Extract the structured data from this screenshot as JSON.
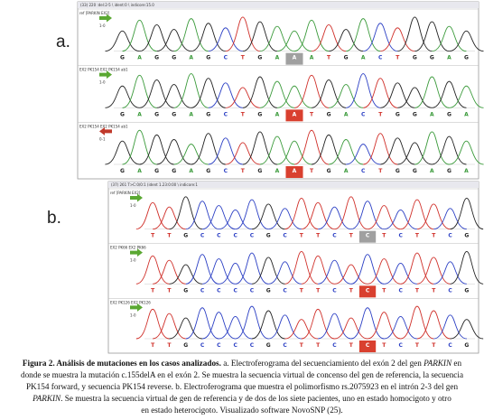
{
  "panels": [
    {
      "label": "a.",
      "header": "(33) 220 :del:2-5 \\ ident:0 \\ indicore:15.0",
      "tracks": [
        {
          "name": "ref [PARKIN EX2]",
          "strand": "1-0",
          "bases": [
            "G",
            "A",
            "G",
            "G",
            "A",
            "G",
            "C",
            "T",
            "G",
            "A",
            "A",
            "A",
            "T",
            "G",
            "A",
            "C",
            "T",
            "G",
            "G",
            "A",
            "G"
          ],
          "highlight": 10,
          "highlight_color": "#a0a0a0",
          "arrow_color": "#5aa832",
          "arrow_dir": "right"
        },
        {
          "name": "EX2 PK154 EX2 PK154 ab1",
          "strand": "1-0",
          "bases": [
            "G",
            "A",
            "G",
            "G",
            "A",
            "G",
            "C",
            "T",
            "G",
            "A",
            "A",
            "T",
            "G",
            "A",
            "C",
            "T",
            "G",
            "G",
            "A",
            "G",
            "A"
          ],
          "highlight": 10,
          "highlight_color": "#d9402f",
          "arrow_color": "#5aa832",
          "arrow_dir": "right"
        },
        {
          "name": "EX2 PK154 EX2 PK154 ab1",
          "strand": "0-1",
          "bases": [
            "G",
            "A",
            "G",
            "G",
            "A",
            "G",
            "C",
            "T",
            "G",
            "A",
            "A",
            "T",
            "G",
            "A",
            "C",
            "T",
            "G",
            "G",
            "A",
            "G",
            "A"
          ],
          "highlight": 10,
          "highlight_color": "#d9402f",
          "arrow_color": "#c0392b",
          "arrow_dir": "left"
        }
      ]
    },
    {
      "label": "b.",
      "header": "(37) 261 T>C:0/0:1 (ident 1.23:0:00 \\ indicore:1",
      "tracks": [
        {
          "name": "ref [PARKIN EX2]",
          "strand": "1-0",
          "bases": [
            "T",
            "T",
            "G",
            "C",
            "C",
            "C",
            "C",
            "G",
            "C",
            "T",
            "T",
            "C",
            "T",
            "C",
            "T",
            "C",
            "T",
            "T",
            "C",
            "G"
          ],
          "highlight": 13,
          "highlight_color": "#a0a0a0",
          "arrow_color": "#5aa832",
          "arrow_dir": "right"
        },
        {
          "name": "EX2 PK66 EX2 PK66",
          "strand": "1-0",
          "bases": [
            "T",
            "T",
            "G",
            "C",
            "C",
            "C",
            "C",
            "G",
            "C",
            "T",
            "T",
            "C",
            "T",
            "C",
            "T",
            "C",
            "T",
            "T",
            "C",
            "G"
          ],
          "highlight": 13,
          "highlight_color": "#d9402f",
          "arrow_color": "#5aa832",
          "arrow_dir": "right"
        },
        {
          "name": "EX2 PK126 EX2 PK126",
          "strand": "1-0",
          "bases": [
            "T",
            "T",
            "G",
            "C",
            "C",
            "C",
            "C",
            "G",
            "C",
            "T",
            "T",
            "C",
            "T",
            "C",
            "T",
            "C",
            "T",
            "T",
            "C",
            "G"
          ],
          "highlight": 13,
          "highlight_color": "#d9402f",
          "arrow_color": "#5aa832",
          "arrow_dir": "right"
        }
      ]
    }
  ],
  "base_colors": {
    "A": "#3a9a3a",
    "C": "#2b3fc4",
    "G": "#222222",
    "T": "#d0302a"
  },
  "caption": {
    "lines": [
      [
        {
          "text": "Figura 2. Análisis de mutaciones en los casos analizados.",
          "style": "bold"
        },
        {
          "text": " a. Electroferograma del secuenciamiento del exón 2 del gen ",
          "style": "normal"
        },
        {
          "text": "PARKIN",
          "style": "italic"
        },
        {
          "text": " en",
          "style": "normal"
        }
      ],
      [
        {
          "text": "donde se muestra la mutación c.155delA en el exón 2. Se muestra la secuencia virtual de concenso del gen de referencia, la secuencia",
          "style": "normal"
        }
      ],
      [
        {
          "text": "PK154 forward, y secuencia PK154 reverse. b. Electroferograma que muestra el polimorfismo rs.2075923 en el intrón 2-3 del gen",
          "style": "normal"
        }
      ],
      [
        {
          "text": "PARKIN",
          "style": "italic"
        },
        {
          "text": ". Se muestra la secuencia virtual de gen de referencia y de dos de los siete pacientes, uno en estado homocigoto y otro",
          "style": "normal"
        }
      ],
      [
        {
          "text": "en estado heterocigoto. Visualizado software NovoSNP (25).",
          "style": "normal"
        }
      ]
    ]
  }
}
